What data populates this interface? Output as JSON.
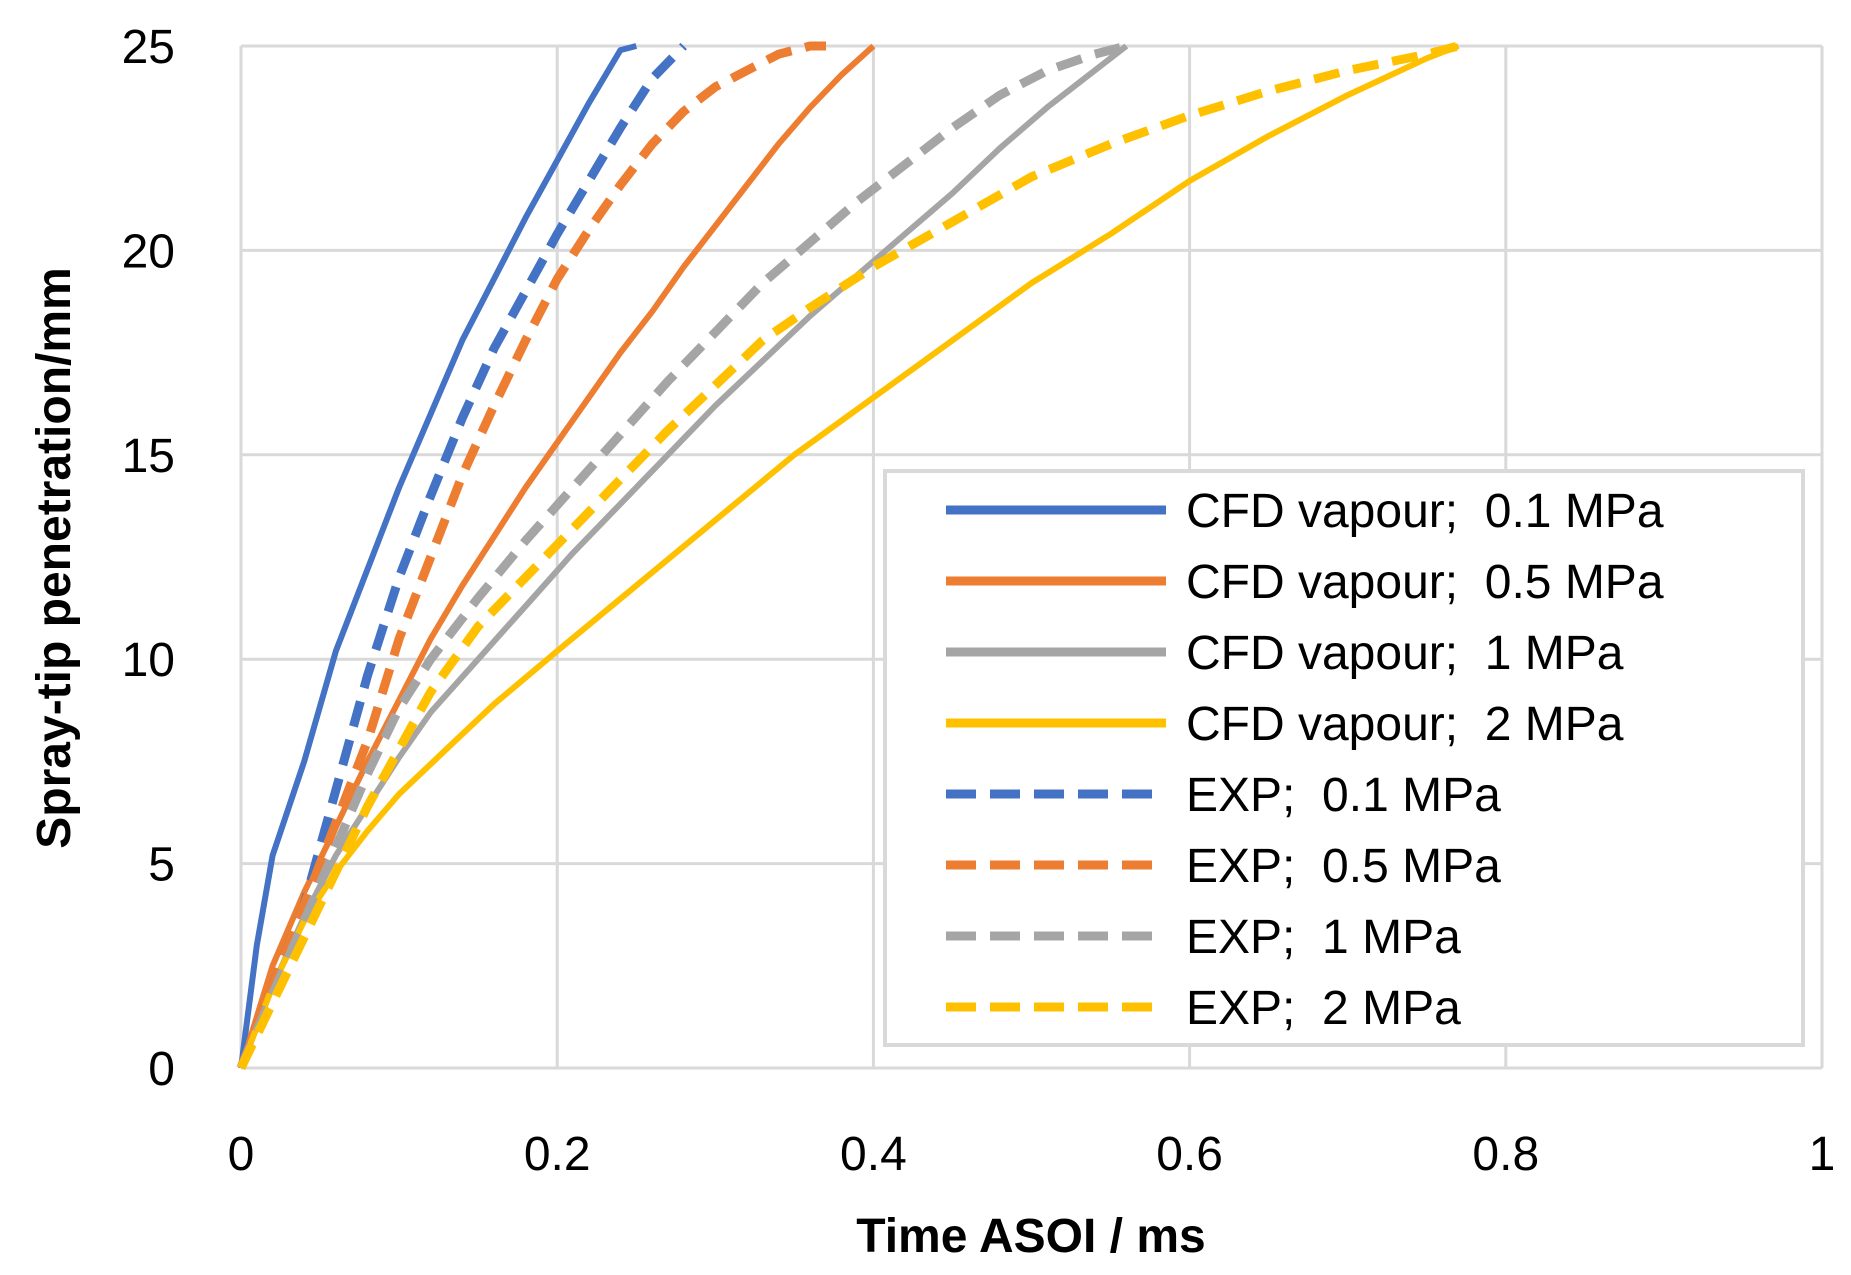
{
  "chart_data": {
    "type": "line",
    "title": "",
    "xlabel": "Time ASOI / ms",
    "ylabel": "Spray-tip penetration/mm",
    "xlim": [
      0,
      1
    ],
    "ylim": [
      0,
      25
    ],
    "x_ticks": [
      "0",
      "0.2",
      "0.4",
      "0.6",
      "0.8",
      "1"
    ],
    "y_ticks": [
      "0",
      "5",
      "10",
      "15",
      "20",
      "25"
    ],
    "grid": true,
    "legend_position": "bottom-right",
    "series": [
      {
        "name": "CFD vapour;  0.1 MPa",
        "color": "#4472C4",
        "style": "solid",
        "x": [
          0,
          0.01,
          0.02,
          0.04,
          0.06,
          0.08,
          0.1,
          0.12,
          0.14,
          0.16,
          0.18,
          0.2,
          0.22,
          0.24,
          0.25
        ],
        "y": [
          0,
          3.0,
          5.2,
          7.5,
          10.2,
          12.2,
          14.2,
          16.0,
          17.8,
          19.3,
          20.8,
          22.2,
          23.6,
          24.9,
          25
        ]
      },
      {
        "name": "CFD vapour;  0.5 MPa",
        "color": "#ED7D31",
        "style": "solid",
        "x": [
          0,
          0.02,
          0.04,
          0.06,
          0.08,
          0.1,
          0.12,
          0.14,
          0.16,
          0.18,
          0.2,
          0.22,
          0.24,
          0.26,
          0.28,
          0.3,
          0.32,
          0.34,
          0.36,
          0.38,
          0.4
        ],
        "y": [
          0,
          2.5,
          4.3,
          5.9,
          7.5,
          9.0,
          10.5,
          11.8,
          13.0,
          14.2,
          15.3,
          16.4,
          17.5,
          18.5,
          19.6,
          20.6,
          21.6,
          22.6,
          23.5,
          24.3,
          25
        ]
      },
      {
        "name": "CFD vapour;  1 MPa",
        "color": "#A5A5A5",
        "style": "solid",
        "x": [
          0,
          0.02,
          0.04,
          0.06,
          0.08,
          0.1,
          0.12,
          0.15,
          0.18,
          0.21,
          0.24,
          0.27,
          0.3,
          0.33,
          0.36,
          0.39,
          0.42,
          0.45,
          0.48,
          0.51,
          0.54,
          0.56
        ],
        "y": [
          0,
          2.0,
          3.7,
          5.2,
          6.4,
          7.6,
          8.7,
          10.0,
          11.3,
          12.6,
          13.8,
          15.0,
          16.2,
          17.3,
          18.4,
          19.4,
          20.4,
          21.4,
          22.5,
          23.5,
          24.4,
          25
        ]
      },
      {
        "name": "CFD vapour;  2 MPa",
        "color": "#FFC000",
        "style": "solid",
        "x": [
          0,
          0.02,
          0.04,
          0.06,
          0.08,
          0.1,
          0.13,
          0.16,
          0.2,
          0.25,
          0.3,
          0.35,
          0.4,
          0.45,
          0.5,
          0.55,
          0.6,
          0.65,
          0.7,
          0.75,
          0.77
        ],
        "y": [
          0,
          2.0,
          3.6,
          4.8,
          5.8,
          6.7,
          7.8,
          8.9,
          10.2,
          11.8,
          13.4,
          15.0,
          16.4,
          17.8,
          19.2,
          20.4,
          21.7,
          22.8,
          23.8,
          24.7,
          25
        ]
      },
      {
        "name": "EXP;  0.1 MPa",
        "color": "#4472C4",
        "style": "dashed",
        "x": [
          0,
          0.01,
          0.02,
          0.04,
          0.06,
          0.08,
          0.1,
          0.12,
          0.14,
          0.16,
          0.18,
          0.2,
          0.22,
          0.24,
          0.26,
          0.28
        ],
        "y": [
          0,
          1.0,
          2.0,
          4.0,
          6.8,
          9.6,
          12.0,
          14.0,
          15.9,
          17.6,
          19.0,
          20.4,
          21.7,
          23.0,
          24.2,
          25
        ]
      },
      {
        "name": "EXP;  0.5 MPa",
        "color": "#ED7D31",
        "style": "dashed",
        "x": [
          0,
          0.01,
          0.02,
          0.04,
          0.06,
          0.08,
          0.1,
          0.12,
          0.14,
          0.16,
          0.18,
          0.2,
          0.22,
          0.24,
          0.26,
          0.28,
          0.3,
          0.32,
          0.34,
          0.36,
          0.37
        ],
        "y": [
          0,
          1.0,
          2.0,
          4.0,
          6.0,
          8.0,
          10.5,
          12.5,
          14.5,
          16.2,
          17.8,
          19.3,
          20.5,
          21.6,
          22.6,
          23.4,
          24.0,
          24.4,
          24.8,
          25,
          25
        ]
      },
      {
        "name": "EXP;  1 MPa",
        "color": "#A5A5A5",
        "style": "dashed",
        "x": [
          0,
          0.02,
          0.04,
          0.06,
          0.08,
          0.1,
          0.12,
          0.15,
          0.18,
          0.21,
          0.24,
          0.27,
          0.3,
          0.33,
          0.36,
          0.39,
          0.42,
          0.45,
          0.48,
          0.51,
          0.54,
          0.56
        ],
        "y": [
          0,
          1.8,
          3.6,
          5.4,
          7.2,
          8.8,
          10.0,
          11.5,
          12.9,
          14.2,
          15.5,
          16.8,
          18.0,
          19.2,
          20.2,
          21.2,
          22.1,
          23.0,
          23.8,
          24.4,
          24.8,
          25
        ]
      },
      {
        "name": "EXP;  2 MPa",
        "color": "#FFC000",
        "style": "dashed",
        "x": [
          0,
          0.02,
          0.04,
          0.06,
          0.08,
          0.1,
          0.12,
          0.15,
          0.18,
          0.21,
          0.24,
          0.27,
          0.3,
          0.33,
          0.36,
          0.4,
          0.45,
          0.5,
          0.55,
          0.6,
          0.65,
          0.7,
          0.75,
          0.77
        ],
        "y": [
          0,
          1.6,
          3.2,
          4.8,
          6.4,
          7.8,
          9.2,
          10.8,
          12.0,
          13.2,
          14.4,
          15.6,
          16.7,
          17.8,
          18.6,
          19.6,
          20.7,
          21.8,
          22.6,
          23.3,
          23.9,
          24.4,
          24.8,
          25
        ]
      }
    ]
  }
}
